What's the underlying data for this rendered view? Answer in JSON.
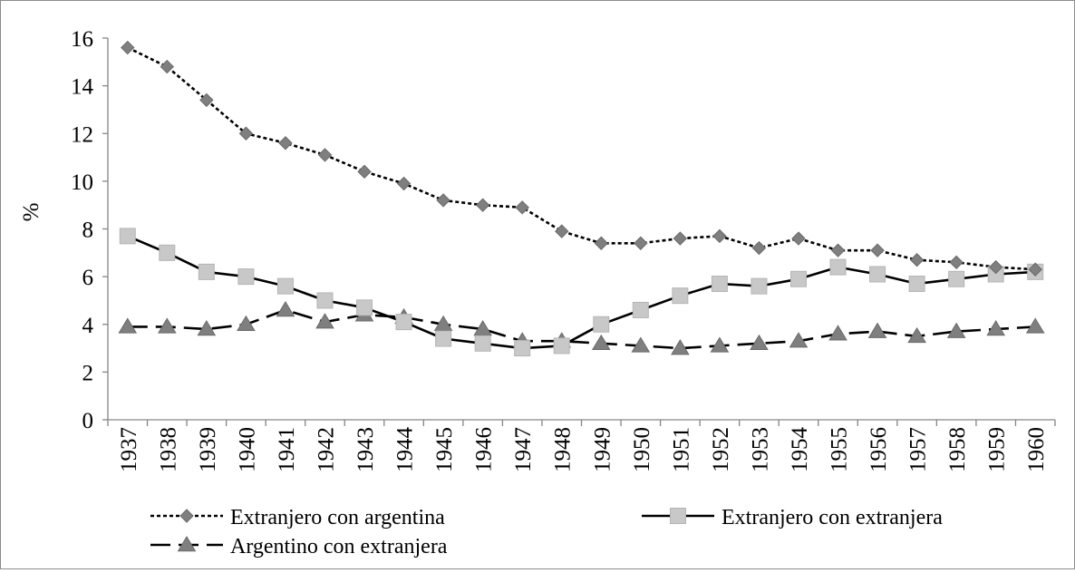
{
  "chart_data": {
    "type": "line",
    "title": "",
    "xlabel": "",
    "ylabel": "%",
    "ylim": [
      0,
      16
    ],
    "yticks": [
      0,
      2,
      4,
      6,
      8,
      10,
      12,
      14,
      16
    ],
    "grid": false,
    "legend_position": "bottom",
    "categories": [
      "1937",
      "1938",
      "1939",
      "1940",
      "1941",
      "1942",
      "1943",
      "1944",
      "1945",
      "1946",
      "1947",
      "1948",
      "1949",
      "1950",
      "1951",
      "1952",
      "1953",
      "1954",
      "1955",
      "1956",
      "1957",
      "1958",
      "1959",
      "1960"
    ],
    "series": [
      {
        "name": "Extranjero con argentina",
        "marker": "diamond",
        "line_style": "dotted",
        "color": "#7f7f7f",
        "values": [
          15.6,
          14.8,
          13.4,
          12.0,
          11.6,
          11.1,
          10.4,
          9.9,
          9.2,
          9.0,
          8.9,
          7.9,
          7.4,
          7.4,
          7.6,
          7.7,
          7.2,
          7.6,
          7.1,
          7.1,
          6.7,
          6.6,
          6.4,
          6.3
        ]
      },
      {
        "name": "Extranjero con extranjera",
        "marker": "square",
        "line_style": "solid",
        "color": "#c8c8c8",
        "values": [
          7.7,
          7.0,
          6.2,
          6.0,
          5.6,
          5.0,
          4.7,
          4.1,
          3.4,
          3.2,
          3.0,
          3.1,
          4.0,
          4.6,
          5.2,
          5.7,
          5.6,
          5.9,
          6.4,
          6.1,
          5.7,
          5.9,
          6.1,
          6.2
        ]
      },
      {
        "name": "Argentino con extranjera",
        "marker": "triangle",
        "line_style": "dashed",
        "color": "#7f7f7f",
        "values": [
          3.9,
          3.9,
          3.8,
          4.0,
          4.6,
          4.1,
          4.4,
          4.3,
          4.0,
          3.8,
          3.3,
          3.3,
          3.2,
          3.1,
          3.0,
          3.1,
          3.2,
          3.3,
          3.6,
          3.7,
          3.5,
          3.7,
          3.8,
          3.9
        ]
      }
    ]
  }
}
